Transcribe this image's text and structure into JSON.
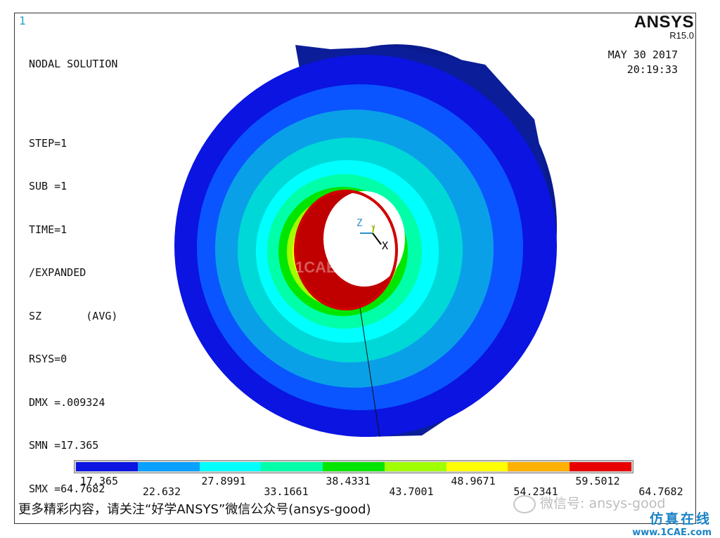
{
  "window": {
    "number": "1"
  },
  "info": {
    "title": "NODAL SOLUTION",
    "lines": [
      "STEP=1",
      "SUB =1",
      "TIME=1",
      "/EXPANDED",
      "SZ       (AVG)",
      "RSYS=0",
      "DMX =.009324",
      "SMN =17.365",
      "SMX =64.7682"
    ]
  },
  "logo": {
    "name": "ANSYS",
    "revision": "R15.0"
  },
  "datetime": {
    "date": "MAY 30 2017",
    "time": "20:19:33"
  },
  "axes": {
    "z": "Z",
    "y": "Y",
    "x": "X"
  },
  "legend": {
    "colors": [
      "#0b14e0",
      "#0aa0ff",
      "#00ffff",
      "#00ffa8",
      "#00e600",
      "#a0ff00",
      "#ffff00",
      "#ffb000",
      "#e80000"
    ],
    "ticks_top": [
      "17.365",
      "27.8991",
      "38.4331",
      "48.9671",
      "59.5012"
    ],
    "ticks_bottom": [
      "22.632",
      "33.1661",
      "43.7001",
      "54.2341",
      "64.7682"
    ]
  },
  "footer": {
    "text": "更多精彩内容，请关注“好学ANSYS”微信公众号(ansys-good)"
  },
  "watermarks": {
    "wechat": "微信号: ansys-good",
    "site_cn": "仿真在线",
    "site_url": "www.1CAE.com",
    "center": "1CAE.COM"
  }
}
